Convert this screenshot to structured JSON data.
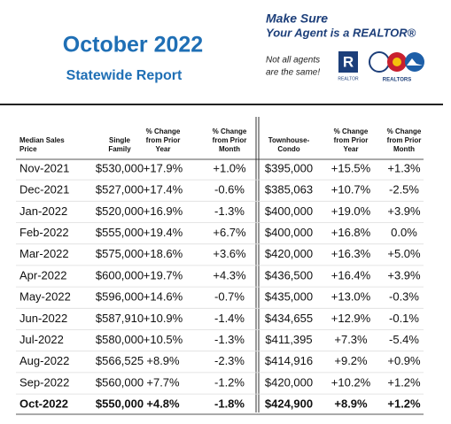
{
  "header": {
    "title": "October 2022",
    "subtitle": "Statewide Report",
    "tagline": [
      "Make Sure",
      "Your Agent is a REALTOR®"
    ],
    "note": [
      "Not all agents",
      "are the same!"
    ],
    "logo_left": "REALTOR",
    "logo_right": "REALTORS"
  },
  "table": {
    "columns": [
      [
        "Median Sales",
        "Price"
      ],
      [
        "Single",
        "Family"
      ],
      [
        "% Change",
        "from Prior",
        "Year"
      ],
      [
        "% Change",
        "from Prior",
        "Month"
      ],
      [
        "Townhouse-",
        "Condo"
      ],
      [
        "% Change",
        "from Prior",
        "Year"
      ],
      [
        "% Change",
        "from Prior",
        "Month"
      ]
    ],
    "rows": [
      [
        "Nov-2021",
        "$530,000",
        "+17.9%",
        "+1.0%",
        "$395,000",
        "+15.5%",
        "+1.3%"
      ],
      [
        "Dec-2021",
        "$527,000",
        "+17.4%",
        "-0.6%",
        "$385,063",
        "+10.7%",
        "-2.5%"
      ],
      [
        "Jan-2022",
        "$520,000",
        "+16.9%",
        "-1.3%",
        "$400,000",
        "+19.0%",
        "+3.9%"
      ],
      [
        "Feb-2022",
        "$555,000",
        "+19.4%",
        "+6.7%",
        "$400,000",
        "+16.8%",
        "0.0%"
      ],
      [
        "Mar-2022",
        "$575,000",
        "+18.6%",
        "+3.6%",
        "$420,000",
        "+16.3%",
        "+5.0%"
      ],
      [
        "Apr-2022",
        "$600,000",
        "+19.7%",
        "+4.3%",
        "$436,500",
        "+16.4%",
        "+3.9%"
      ],
      [
        "May-2022",
        "$596,000",
        "+14.6%",
        "-0.7%",
        "$435,000",
        "+13.0%",
        "-0.3%"
      ],
      [
        "Jun-2022",
        "$587,910",
        "+10.9%",
        "-1.4%",
        "$434,655",
        "+12.9%",
        "-0.1%"
      ],
      [
        "Jul-2022",
        "$580,000",
        "+10.5%",
        "-1.3%",
        "$411,395",
        "+7.3%",
        "-5.4%"
      ],
      [
        "Aug-2022",
        "$566,525",
        "+8.9%",
        "-2.3%",
        "$414,916",
        "+9.2%",
        "+0.9%"
      ],
      [
        "Sep-2022",
        "$560,000",
        "+7.7%",
        "-1.2%",
        "$420,000",
        "+10.2%",
        "+1.2%"
      ],
      [
        "Oct-2022",
        "$550,000",
        "+4.8%",
        "-1.8%",
        "$424,900",
        "+8.9%",
        "+1.2%"
      ]
    ]
  }
}
